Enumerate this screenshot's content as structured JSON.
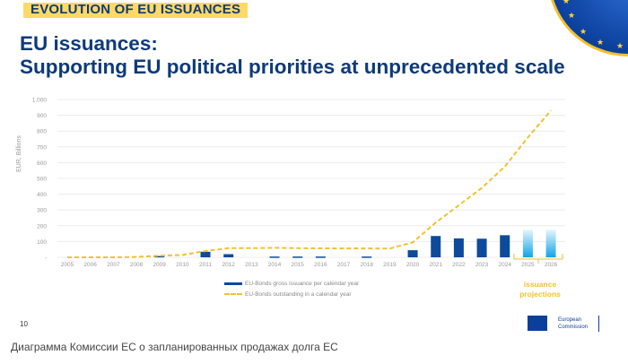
{
  "header": {
    "section_tag": "EVOLUTION OF EU ISSUANCES",
    "title_line1": "EU issuances:",
    "title_line2": "Supporting EU political priorities at unprecedented scale"
  },
  "footer": {
    "page_number": "10",
    "logo_line1": "European",
    "logo_line2": "Commission",
    "caption": "Диаграмма Комиссии ЕС о запланированных продажах долга ЕС"
  },
  "annotation": {
    "line1": "issuance",
    "line2": "projections",
    "applies_to": [
      "2025",
      "2026"
    ]
  },
  "chart_data": {
    "type": "bar",
    "title": "",
    "xlabel": "",
    "ylabel": "EUR, Billions",
    "ylim": [
      0,
      1000
    ],
    "yticks": [
      "-",
      "100",
      "200",
      "300",
      "400",
      "500",
      "600",
      "700",
      "800",
      "900",
      "1.000"
    ],
    "grid": true,
    "legend_position": "bottom-center",
    "categories": [
      "2005",
      "2006",
      "2007",
      "2008",
      "2009",
      "2010",
      "2011",
      "2012",
      "2013",
      "2014",
      "2015",
      "2016",
      "2017",
      "2018",
      "2019",
      "2020",
      "2021",
      "2022",
      "2023",
      "2024",
      "2025",
      "2026"
    ],
    "series": [
      {
        "name": "EU-Bonds gross issuance per calendar year",
        "kind": "bar",
        "color": "#0d4a9c",
        "projection_color": "#1aa7e8",
        "values": [
          0,
          0,
          0,
          0,
          8,
          0,
          35,
          20,
          0,
          5,
          5,
          5,
          0,
          5,
          0,
          45,
          135,
          120,
          118,
          140,
          175,
          175
        ]
      },
      {
        "name": "EU-Bonds outstanding in a calendar year",
        "kind": "line-dashed",
        "color": "#f2c12e",
        "values": [
          0,
          0,
          0,
          2,
          10,
          15,
          40,
          58,
          58,
          60,
          58,
          57,
          56,
          56,
          55,
          95,
          220,
          330,
          440,
          575,
          760,
          930
        ]
      }
    ]
  }
}
